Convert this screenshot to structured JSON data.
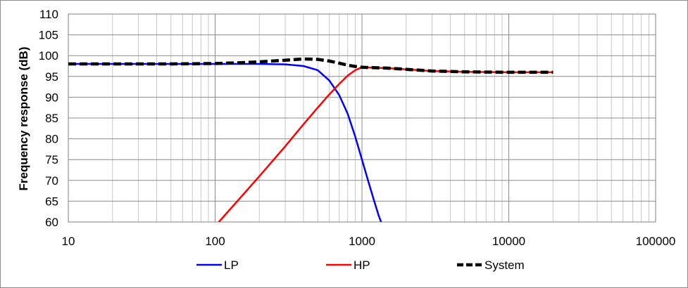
{
  "chart_data": {
    "type": "line",
    "title": "",
    "xlabel": "",
    "ylabel": "Frequency response  (dB)",
    "x_scale": "log",
    "xlim": [
      10,
      100000
    ],
    "ylim": [
      60,
      110
    ],
    "x_ticks": [
      10,
      100,
      1000,
      10000,
      100000
    ],
    "x_tick_labels": [
      "10",
      "100",
      "1000",
      "10000",
      "100000"
    ],
    "y_ticks": [
      60,
      65,
      70,
      75,
      80,
      85,
      90,
      95,
      100,
      105,
      110
    ],
    "y_tick_labels": [
      "60",
      "65",
      "70",
      "75",
      "80",
      "85",
      "90",
      "95",
      "100",
      "105",
      "110"
    ],
    "grid": "major and minor",
    "legend_position": "bottom",
    "series": [
      {
        "name": "LP",
        "color": "#0000ff",
        "dash": "solid",
        "x": [
          10,
          20,
          50,
          100,
          200,
          300,
          400,
          500,
          600,
          700,
          800,
          900,
          1000,
          1100,
          1200,
          1300,
          1350
        ],
        "y": [
          98,
          98,
          98,
          98,
          98,
          97.9,
          97.5,
          96.5,
          94,
          90.5,
          86,
          80.5,
          75,
          70,
          65.5,
          61.5,
          60
        ]
      },
      {
        "name": "HP",
        "color": "#ff0000",
        "dash": "solid",
        "x": [
          106,
          150,
          200,
          300,
          400,
          500,
          600,
          700,
          800,
          900,
          1000,
          1500,
          2000,
          3000,
          5000,
          10000,
          20000
        ],
        "y": [
          60,
          66,
          71,
          78.2,
          83.5,
          87.5,
          90.7,
          93.2,
          95.2,
          96.5,
          97.2,
          97,
          96.7,
          96.3,
          96.1,
          96,
          96
        ]
      },
      {
        "name": "System",
        "color": "#000000",
        "dash": "dashed",
        "x": [
          10,
          20,
          50,
          100,
          150,
          200,
          300,
          400,
          500,
          600,
          700,
          800,
          900,
          1000,
          1500,
          2000,
          3000,
          5000,
          10000,
          20000
        ],
        "y": [
          98,
          98,
          98,
          98.1,
          98.3,
          98.5,
          98.9,
          99.2,
          99.1,
          98.7,
          98.2,
          97.7,
          97.4,
          97.2,
          97,
          96.7,
          96.3,
          96.1,
          96,
          96
        ]
      }
    ]
  }
}
